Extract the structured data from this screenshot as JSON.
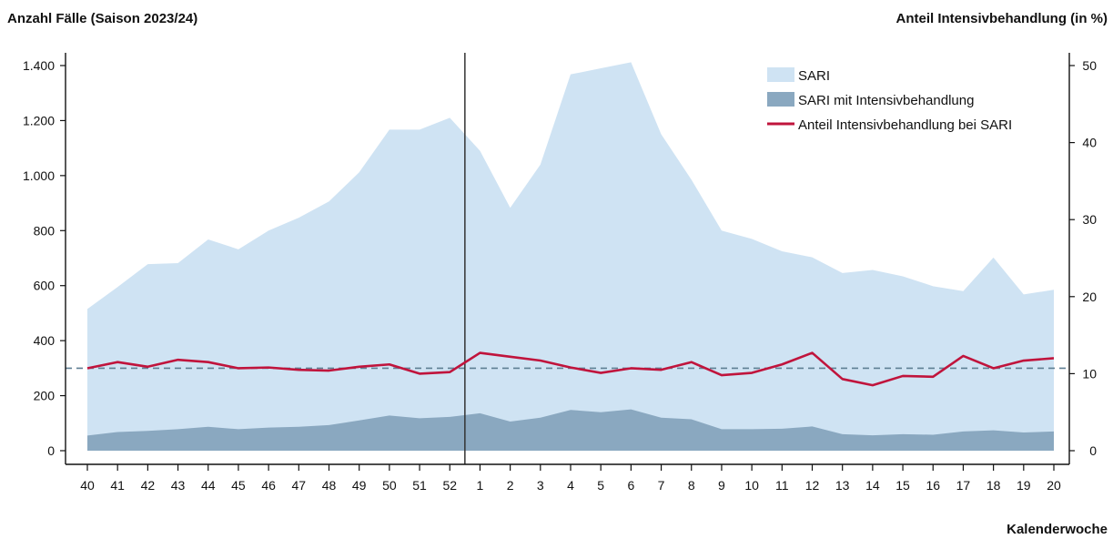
{
  "chart_data": {
    "type": "area",
    "ylabel_left": "Anzahl Fälle (Saison 2023/24)",
    "ylabel_right": "Anteil Intensivbehandlung (in %)",
    "xlabel": "Kalenderwoche",
    "categories": [
      "40",
      "41",
      "42",
      "43",
      "44",
      "45",
      "46",
      "47",
      "48",
      "49",
      "50",
      "51",
      "52",
      "1",
      "2",
      "3",
      "4",
      "5",
      "6",
      "7",
      "8",
      "9",
      "10",
      "11",
      "12",
      "13",
      "14",
      "15",
      "16",
      "17",
      "18",
      "19",
      "20"
    ],
    "ylim_left": [
      0,
      1400
    ],
    "yticks_left": [
      0,
      200,
      400,
      600,
      800,
      1000,
      1200,
      1400
    ],
    "ytick_labels_left": [
      "0",
      "200",
      "400",
      "600",
      "800",
      "1.000",
      "1.200",
      "1.400"
    ],
    "ylim_right": [
      0,
      50
    ],
    "yticks_right": [
      0,
      10,
      20,
      30,
      40,
      50
    ],
    "ytick_labels_right": [
      "0",
      "10",
      "20",
      "30",
      "40",
      "50"
    ],
    "series": [
      {
        "name": "SARI",
        "axis": "left",
        "kind": "area",
        "color": "#cfe3f3",
        "values": [
          515,
          595,
          678,
          682,
          768,
          732,
          800,
          847,
          906,
          1012,
          1167,
          1167,
          1210,
          1090,
          883,
          1040,
          1368,
          1390,
          1412,
          1150,
          985,
          800,
          770,
          725,
          703,
          646,
          657,
          634,
          598,
          580,
          702,
          568,
          585
        ]
      },
      {
        "name": "SARI mit Intensivbehandlung",
        "axis": "left",
        "kind": "area",
        "color": "#8aa8c0",
        "values": [
          55,
          68,
          72,
          78,
          87,
          78,
          84,
          87,
          93,
          110,
          128,
          118,
          123,
          136,
          106,
          120,
          148,
          140,
          150,
          120,
          114,
          78,
          78,
          80,
          88,
          60,
          56,
          60,
          58,
          70,
          74,
          66,
          70
        ]
      },
      {
        "name": "Anteil Intensivbehandlung bei SARI",
        "axis": "right",
        "kind": "line",
        "color": "#c0143c",
        "values": [
          10.7,
          11.5,
          10.9,
          11.8,
          11.5,
          10.7,
          10.8,
          10.5,
          10.4,
          10.9,
          11.2,
          10.0,
          10.2,
          12.7,
          12.2,
          11.7,
          10.8,
          10.1,
          10.7,
          10.5,
          11.5,
          9.8,
          10.1,
          11.2,
          12.7,
          9.3,
          8.5,
          9.7,
          9.6,
          12.3,
          10.7,
          11.7,
          12.0
        ]
      }
    ],
    "reference_line": {
      "axis": "right",
      "value": 10.7,
      "style": "dashed",
      "color": "#5f7f93"
    },
    "season_divider": {
      "between": [
        "52",
        "1"
      ],
      "color": "#333333"
    },
    "grid": false,
    "legend": "top-right"
  }
}
